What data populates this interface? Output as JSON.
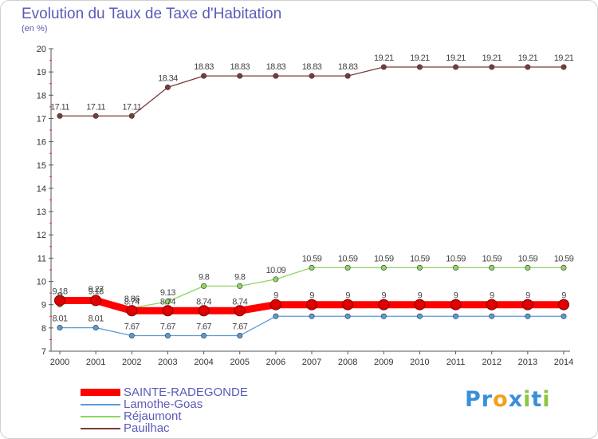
{
  "chart_data": {
    "type": "line",
    "title": "Evolution du Taux de Taxe d'Habitation",
    "subtitle": "(en %)",
    "x": [
      "2000",
      "2001",
      "2002",
      "2003",
      "2004",
      "2005",
      "2006",
      "2007",
      "2008",
      "2009",
      "2010",
      "2011",
      "2012",
      "2013",
      "2014"
    ],
    "ylim": [
      7,
      20
    ],
    "yticks": [
      7,
      8,
      9,
      10,
      11,
      12,
      13,
      14,
      15,
      16,
      17,
      18,
      19,
      20
    ],
    "grid": false,
    "legend_position": "bottom-left",
    "series": [
      {
        "name": "SAINTE-RADEGONDE",
        "color": "#ff0000",
        "values": [
          9.18,
          9.18,
          8.74,
          8.74,
          8.74,
          8.74,
          9,
          9,
          9,
          9,
          9,
          9,
          9,
          9,
          9
        ],
        "labels": [
          "9.18",
          "9.18",
          "8.74",
          "8.74",
          "8.74",
          "8.74",
          "9",
          "9",
          "9",
          "9",
          "9",
          "9",
          "9",
          "9",
          "9"
        ]
      },
      {
        "name": "Lamothe-Goas",
        "color": "#5a9bd5",
        "values": [
          8.01,
          8.01,
          7.67,
          7.67,
          7.67,
          7.67,
          8.5,
          8.5,
          8.5,
          8.5,
          8.5,
          8.5,
          8.5,
          8.5,
          8.5
        ],
        "labels": [
          "8.01",
          "8.01",
          "7.67",
          "7.67",
          "7.67",
          "7.67",
          "",
          "",
          "",
          "",
          "",
          "",
          "",
          "",
          ""
        ]
      },
      {
        "name": "Réjaumont",
        "color": "#8fd660",
        "values": [
          9,
          9.27,
          8.86,
          9.13,
          9.8,
          9.8,
          10.09,
          10.59,
          10.59,
          10.59,
          10.59,
          10.59,
          10.59,
          10.59,
          10.59
        ],
        "labels": [
          "9",
          "9.27",
          "8.86",
          "9.13",
          "9.8",
          "9.8",
          "10.09",
          "10.59",
          "10.59",
          "10.59",
          "10.59",
          "10.59",
          "10.59",
          "10.59",
          "10.59"
        ]
      },
      {
        "name": "Pauilhac",
        "color": "#7a3b3b",
        "values": [
          17.11,
          17.11,
          17.11,
          18.34,
          18.83,
          18.83,
          18.83,
          18.83,
          18.83,
          19.21,
          19.21,
          19.21,
          19.21,
          19.21,
          19.21
        ],
        "labels": [
          "17.11",
          "17.11",
          "17.11",
          "18.34",
          "18.83",
          "18.83",
          "18.83",
          "18.83",
          "18.83",
          "19.21",
          "19.21",
          "19.21",
          "19.21",
          "19.21",
          "19.21"
        ]
      }
    ]
  },
  "brand": {
    "letters": [
      "P",
      "r",
      "o",
      "x",
      "i",
      "t",
      "i"
    ],
    "colors": [
      "#3a8fd8",
      "#3a8fd8",
      "#f2a01e",
      "#3a8fd8",
      "#8cc63f",
      "#3a8fd8",
      "#8cc63f"
    ]
  }
}
